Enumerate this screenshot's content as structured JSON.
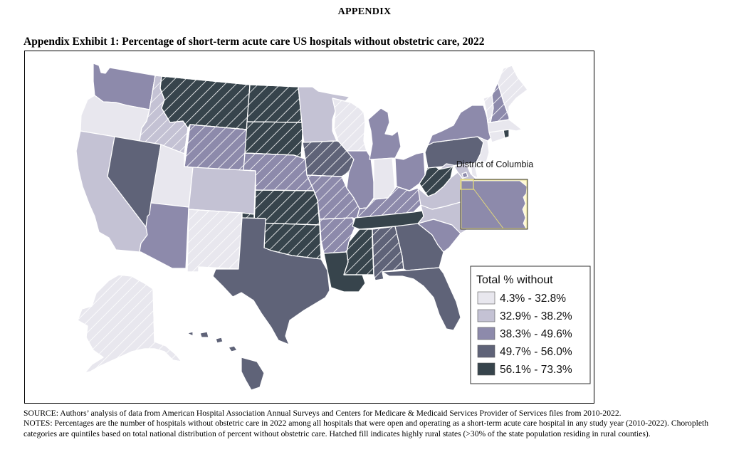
{
  "header": {
    "appendix": "APPENDIX",
    "exhibit_title": "Appendix Exhibit 1: Percentage of short-term acute care US hospitals without obstetric care, 2022"
  },
  "colors": {
    "q1": "#e8e7ee",
    "q2": "#c4c2d4",
    "q3": "#8d8aab",
    "q4": "#5f6378",
    "q5": "#37444c",
    "dc_highlight": "#fff9d4",
    "hatch": "#ffffff"
  },
  "map": {
    "inset_label": "District of Columbia",
    "legend": {
      "title": "Total % without",
      "items": [
        {
          "label": "4.3% - 32.8%",
          "class": "q1"
        },
        {
          "label": "32.9% - 38.2%",
          "class": "q2"
        },
        {
          "label": "38.3% - 49.6%",
          "class": "q3"
        },
        {
          "label": "49.7% - 56.0%",
          "class": "q4"
        },
        {
          "label": "56.1% - 73.3%",
          "class": "q5"
        }
      ]
    },
    "states": [
      {
        "abbr": "WA",
        "q": "q3",
        "rural": false
      },
      {
        "abbr": "OR",
        "q": "q1",
        "rural": false
      },
      {
        "abbr": "CA",
        "q": "q2",
        "rural": false
      },
      {
        "abbr": "ID",
        "q": "q2",
        "rural": true
      },
      {
        "abbr": "NV",
        "q": "q4",
        "rural": false
      },
      {
        "abbr": "UT",
        "q": "q1",
        "rural": false
      },
      {
        "abbr": "AZ",
        "q": "q3",
        "rural": false
      },
      {
        "abbr": "MT",
        "q": "q5",
        "rural": true
      },
      {
        "abbr": "WY",
        "q": "q3",
        "rural": true
      },
      {
        "abbr": "CO",
        "q": "q2",
        "rural": false
      },
      {
        "abbr": "NM",
        "q": "q1",
        "rural": true
      },
      {
        "abbr": "ND",
        "q": "q5",
        "rural": true
      },
      {
        "abbr": "SD",
        "q": "q5",
        "rural": true
      },
      {
        "abbr": "NE",
        "q": "q3",
        "rural": true
      },
      {
        "abbr": "KS",
        "q": "q5",
        "rural": true
      },
      {
        "abbr": "OK",
        "q": "q5",
        "rural": true
      },
      {
        "abbr": "TX",
        "q": "q4",
        "rural": false
      },
      {
        "abbr": "MN",
        "q": "q2",
        "rural": false
      },
      {
        "abbr": "IA",
        "q": "q4",
        "rural": true
      },
      {
        "abbr": "MO",
        "q": "q3",
        "rural": true
      },
      {
        "abbr": "AR",
        "q": "q3",
        "rural": true
      },
      {
        "abbr": "LA",
        "q": "q5",
        "rural": false
      },
      {
        "abbr": "WI",
        "q": "q1",
        "rural": true
      },
      {
        "abbr": "IL",
        "q": "q3",
        "rural": false
      },
      {
        "abbr": "MI",
        "q": "q3",
        "rural": false
      },
      {
        "abbr": "IN",
        "q": "q1",
        "rural": false
      },
      {
        "abbr": "OH",
        "q": "q3",
        "rural": false
      },
      {
        "abbr": "KY",
        "q": "q3",
        "rural": true
      },
      {
        "abbr": "TN",
        "q": "q5",
        "rural": false
      },
      {
        "abbr": "MS",
        "q": "q5",
        "rural": true
      },
      {
        "abbr": "AL",
        "q": "q4",
        "rural": true
      },
      {
        "abbr": "GA",
        "q": "q4",
        "rural": false
      },
      {
        "abbr": "FL",
        "q": "q4",
        "rural": false
      },
      {
        "abbr": "SC",
        "q": "q3",
        "rural": false
      },
      {
        "abbr": "NC",
        "q": "q2",
        "rural": false
      },
      {
        "abbr": "VA",
        "q": "q2",
        "rural": false
      },
      {
        "abbr": "WV",
        "q": "q5",
        "rural": true
      },
      {
        "abbr": "PA",
        "q": "q4",
        "rural": false
      },
      {
        "abbr": "NY",
        "q": "q3",
        "rural": false
      },
      {
        "abbr": "NJ",
        "q": "q1",
        "rural": false
      },
      {
        "abbr": "DE",
        "q": "q1",
        "rural": false
      },
      {
        "abbr": "MD",
        "q": "q2",
        "rural": false
      },
      {
        "abbr": "DC",
        "q": "q3",
        "rural": false
      },
      {
        "abbr": "CT",
        "q": "q1",
        "rural": false
      },
      {
        "abbr": "RI",
        "q": "q5",
        "rural": false
      },
      {
        "abbr": "MA",
        "q": "q1",
        "rural": false
      },
      {
        "abbr": "VT",
        "q": "q1",
        "rural": true
      },
      {
        "abbr": "NH",
        "q": "q3",
        "rural": true
      },
      {
        "abbr": "ME",
        "q": "q1",
        "rural": true
      },
      {
        "abbr": "AK",
        "q": "q1",
        "rural": true
      },
      {
        "abbr": "HI",
        "q": "q4",
        "rural": false
      }
    ]
  },
  "footnotes": {
    "source": "SOURCE: Authors’ analysis of data from American Hospital Association Annual Surveys and Centers for Medicare & Medicaid Services Provider of Services files from 2010-2022.",
    "notes": "NOTES: Percentages are the number of hospitals without obstetric care in 2022 among all hospitals that were open and operating as a short-term acute care hospital in any study year (2010-2022). Choropleth categories are quintiles based on total national distribution of percent without obstetric care. Hatched fill indicates highly rural states (>30% of the state population residing in rural counties)."
  }
}
